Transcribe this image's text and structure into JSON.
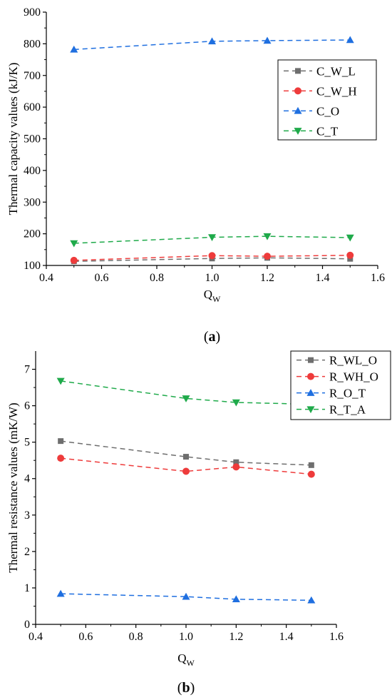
{
  "chart_data": [
    {
      "type": "line",
      "panel_label": "a",
      "xlabel": "Q",
      "xlabel_sub": "W",
      "ylabel": "Thermal capacity values (kJ/K)",
      "xlim": [
        0.4,
        1.6
      ],
      "ylim": [
        100,
        900
      ],
      "xticks": [
        0.4,
        0.6,
        0.8,
        1.0,
        1.2,
        1.4,
        1.6
      ],
      "yticks": [
        100,
        200,
        300,
        400,
        500,
        600,
        700,
        800,
        900
      ],
      "grid": false,
      "legend_position": "top-right",
      "x": [
        0.5,
        1.0,
        1.2,
        1.5
      ],
      "series": [
        {
          "name": "C_W_L",
          "color": "#6e6e6e",
          "marker": "square",
          "values": [
            113,
            122,
            124,
            121
          ]
        },
        {
          "name": "C_W_H",
          "color": "#ee3b3b",
          "marker": "circle",
          "values": [
            116,
            131,
            129,
            132
          ]
        },
        {
          "name": "C_O",
          "color": "#1f6fe0",
          "marker": "triangle-up",
          "values": [
            782,
            808,
            810,
            812
          ]
        },
        {
          "name": "C_T",
          "color": "#1faa4a",
          "marker": "triangle-down",
          "values": [
            170,
            189,
            192,
            188
          ]
        }
      ]
    },
    {
      "type": "line",
      "panel_label": "b",
      "xlabel": "Q",
      "xlabel_sub": "W",
      "ylabel": "Thermal resistance values (mK/W)",
      "xlim": [
        0.4,
        1.6
      ],
      "ylim": [
        0,
        7.5
      ],
      "xticks": [
        0.4,
        0.6,
        0.8,
        1.0,
        1.2,
        1.4,
        1.6
      ],
      "yticks": [
        0,
        1,
        2,
        3,
        4,
        5,
        6,
        7
      ],
      "grid": false,
      "legend_position": "top-right",
      "x": [
        0.5,
        1.0,
        1.2,
        1.5
      ],
      "series": [
        {
          "name": "R_WL_O",
          "color": "#6e6e6e",
          "marker": "square",
          "values": [
            5.03,
            4.6,
            4.45,
            4.37
          ]
        },
        {
          "name": "R_WH_O",
          "color": "#ee3b3b",
          "marker": "circle",
          "values": [
            4.56,
            4.2,
            4.32,
            4.12
          ]
        },
        {
          "name": "R_O_T",
          "color": "#1f6fe0",
          "marker": "triangle-up",
          "values": [
            0.84,
            0.76,
            0.69,
            0.66
          ]
        },
        {
          "name": "R_T_A",
          "color": "#1faa4a",
          "marker": "triangle-down",
          "values": [
            6.68,
            6.2,
            6.09,
            6.04
          ]
        }
      ]
    }
  ]
}
